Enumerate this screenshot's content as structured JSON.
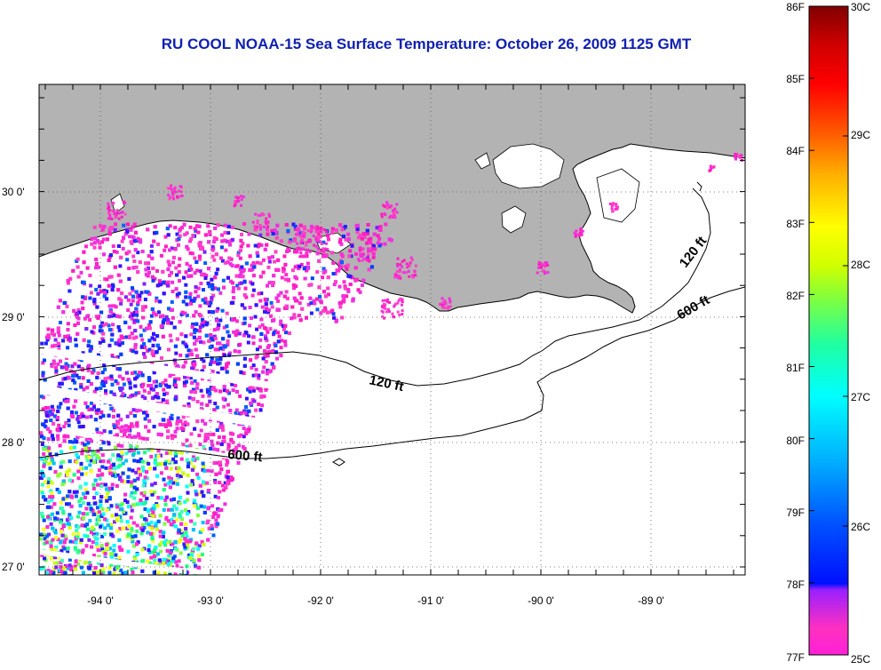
{
  "title": "RU COOL  NOAA-15  Sea Surface Temperature:  October 26, 2009 1125 GMT",
  "map": {
    "x_ticks": [
      "-94 0'",
      "-93 0'",
      "-92 0'",
      "-91 0'",
      "-90 0'",
      "-89 0'"
    ],
    "y_ticks": [
      "30 0'",
      "29 0'",
      "28 0'",
      "27 0'"
    ],
    "contour_labels": [
      "120 ft",
      "120 ft",
      "600 ft",
      "600 ft"
    ]
  },
  "colorbar": {
    "f_labels": [
      "86F",
      "85F",
      "84F",
      "83F",
      "82F",
      "81F",
      "80F",
      "79F",
      "78F",
      "77F"
    ],
    "c_labels": [
      "30C",
      "29C",
      "28C",
      "27C",
      "26C",
      "25C"
    ]
  },
  "colors": {
    "land": "#b3b3b3",
    "title": "#1020b0"
  }
}
